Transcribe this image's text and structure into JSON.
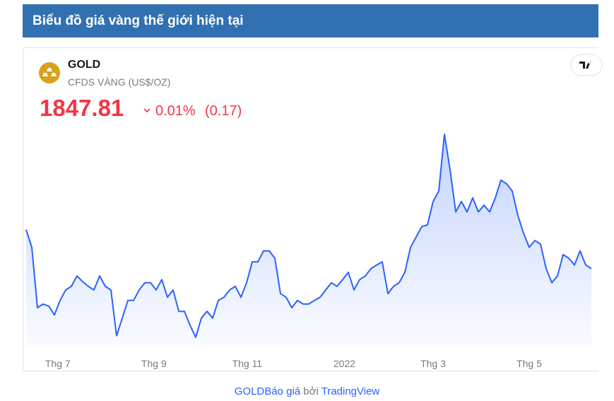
{
  "header": {
    "title": "Biểu đồ giá vàng thế giới hiện tại"
  },
  "widget": {
    "symbol": "GOLD",
    "description": "CFDS VÀNG (US$/OZ)",
    "price": 1847.81,
    "change_percent": "0.01%",
    "change": "(0.17)"
  },
  "chart_data": {
    "type": "line",
    "color": "#2962ff",
    "values": [
      1887,
      1853,
      1737,
      1744,
      1740,
      1723,
      1751,
      1771,
      1778,
      1798,
      1787,
      1778,
      1771,
      1798,
      1778,
      1771,
      1683,
      1717,
      1751,
      1751,
      1771,
      1785,
      1785,
      1771,
      1791,
      1757,
      1771,
      1730,
      1730,
      1703,
      1680,
      1717,
      1730,
      1717,
      1751,
      1757,
      1771,
      1778,
      1757,
      1785,
      1825,
      1825,
      1846,
      1846,
      1832,
      1764,
      1757,
      1737,
      1751,
      1744,
      1744,
      1751,
      1757,
      1771,
      1785,
      1778,
      1791,
      1805,
      1771,
      1791,
      1798,
      1812,
      1819,
      1825,
      1764,
      1778,
      1785,
      1805,
      1853,
      1873,
      1893,
      1896,
      1941,
      1961,
      2070,
      2002,
      1921,
      1941,
      1921,
      1948,
      1921,
      1934,
      1921,
      1948,
      1982,
      1975,
      1961,
      1914,
      1880,
      1853,
      1866,
      1859,
      1812,
      1785,
      1798,
      1839,
      1832,
      1819,
      1846,
      1819,
      1812
    ],
    "xlim": [
      0,
      100
    ],
    "xticks": [
      {
        "value": 5.6,
        "label": "Thg 7"
      },
      {
        "value": 22.6,
        "label": "Thg 9"
      },
      {
        "value": 39.1,
        "label": "Thg 11"
      },
      {
        "value": 56.3,
        "label": "2022"
      },
      {
        "value": 72,
        "label": "Thg 3"
      },
      {
        "value": 89,
        "label": "Thg 5"
      }
    ]
  },
  "footer": {
    "symbol_link": "GOLD",
    "quote_link": "Báo giá",
    "by": "bởi",
    "provider": "TradingView"
  }
}
